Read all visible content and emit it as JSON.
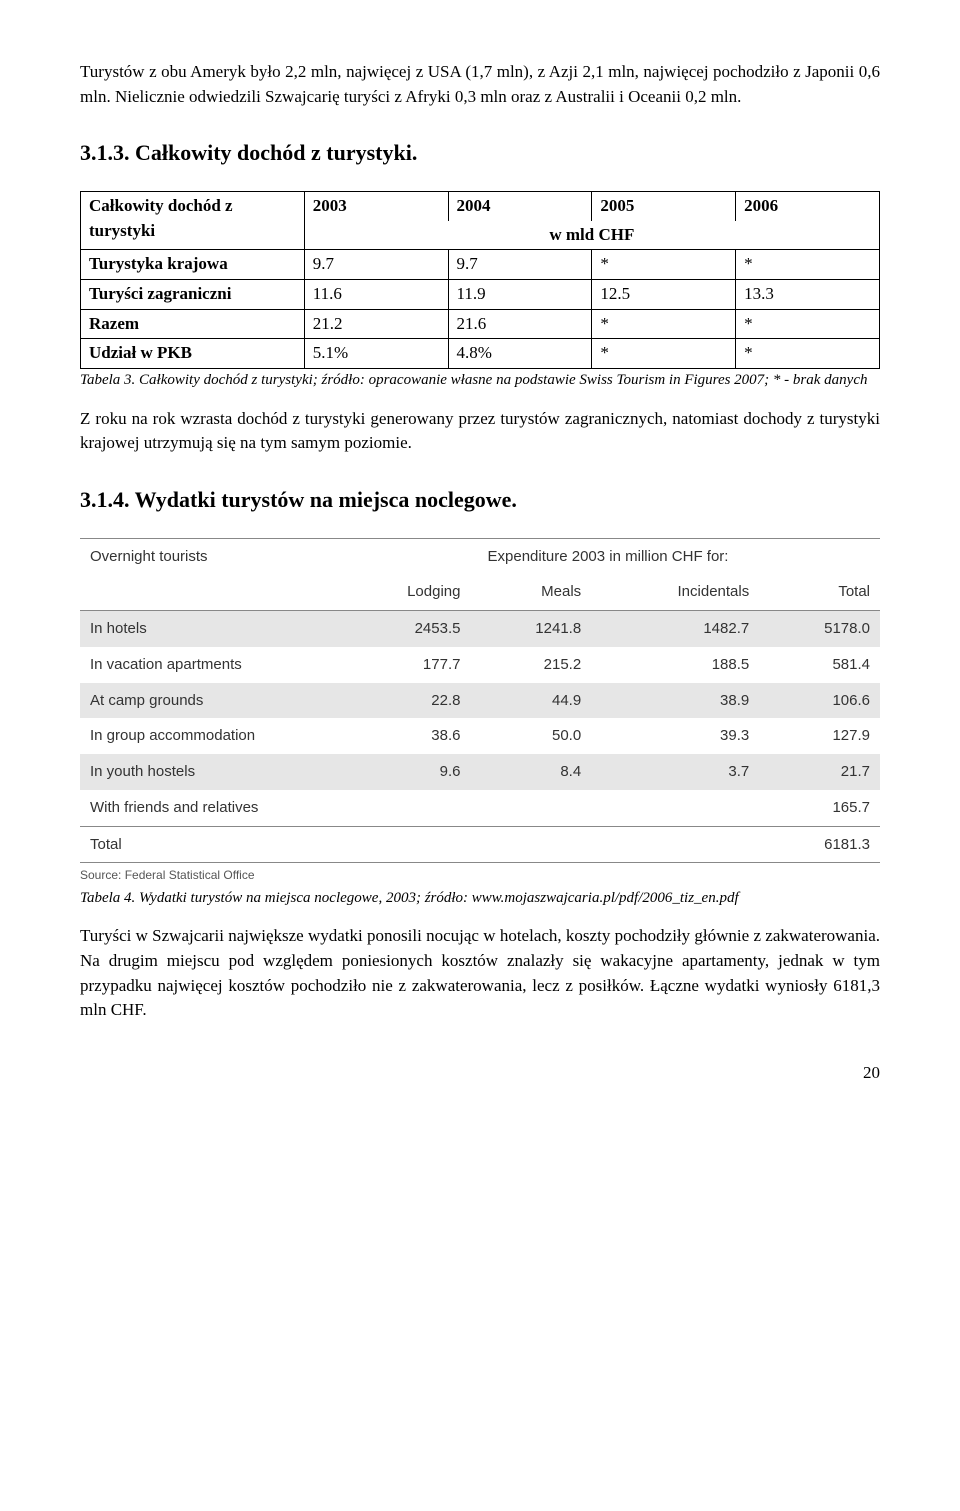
{
  "intro_para": "Turystów z obu Ameryk było 2,2 mln, najwięcej z USA (1,7 mln), z Azji 2,1 mln, najwięcej pochodziło z Japonii 0,6 mln. Nielicznie odwiedzili Szwajcarię turyści z Afryki 0,3 mln oraz z Australii i Oceanii 0,2 mln.",
  "sec313_title": "3.1.3. Całkowity dochód z turystyki.",
  "table1": {
    "header_main": "Całkowity dochód z turystyki",
    "years": [
      "2003",
      "2004",
      "2005",
      "2006"
    ],
    "subheader": "w mld CHF",
    "rows": [
      {
        "label": "Turystyka krajowa",
        "v": [
          "9.7",
          "9.7",
          "*",
          "*"
        ]
      },
      {
        "label": "Turyści zagraniczni",
        "v": [
          "11.6",
          "11.9",
          "12.5",
          "13.3"
        ]
      },
      {
        "label": "Razem",
        "v": [
          "21.2",
          "21.6",
          "*",
          "*"
        ]
      },
      {
        "label": "Udział w PKB",
        "v": [
          "5.1%",
          "4.8%",
          "*",
          "*"
        ]
      }
    ]
  },
  "table1_caption": "Tabela 3. Całkowity dochód z turystyki; źródło: opracowanie własne na podstawie Swiss Tourism in Figures 2007;  * - brak danych",
  "para_after_t1": "Z roku na rok wzrasta dochód z turystyki generowany przez turystów zagranicznych, natomiast dochody z turystyki krajowej utrzymują się na tym samym poziomie.",
  "sec314_title": "3.1.4. Wydatki turystów na miejsca noclegowe.",
  "exp": {
    "top_left": "Overnight tourists",
    "top_right": "Expenditure 2003 in million CHF for:",
    "cols": [
      "Lodging",
      "Meals",
      "Incidentals",
      "Total"
    ],
    "rows": [
      {
        "label": "In hotels",
        "v": [
          "2453.5",
          "1241.8",
          "1482.7",
          "5178.0"
        ],
        "stripe": true
      },
      {
        "label": "In vacation apartments",
        "v": [
          "177.7",
          "215.2",
          "188.5",
          "581.4"
        ],
        "stripe": false
      },
      {
        "label": "At camp grounds",
        "v": [
          "22.8",
          "44.9",
          "38.9",
          "106.6"
        ],
        "stripe": true
      },
      {
        "label": "In group accommodation",
        "v": [
          "38.6",
          "50.0",
          "39.3",
          "127.9"
        ],
        "stripe": false
      },
      {
        "label": "In youth hostels",
        "v": [
          "9.6",
          "8.4",
          "3.7",
          "21.7"
        ],
        "stripe": true
      },
      {
        "label": "With friends and relatives",
        "v": [
          "",
          "",
          "",
          "165.7"
        ],
        "stripe": false
      }
    ],
    "total_label": "Total",
    "total_value": "6181.3",
    "source": "Source: Federal Statistical Office"
  },
  "table2_caption": "Tabela 4. Wydatki turystów na miejsca noclegowe, 2003; źródło: www.mojaszwajcaria.pl/pdf/2006_tiz_en.pdf",
  "final_para": "Turyści w Szwajcarii największe wydatki ponosili nocując w hotelach, koszty pochodziły głównie z zakwaterowania. Na drugim miejscu pod względem poniesionych kosztów znalazły się wakacyjne apartamenty, jednak w tym przypadku najwięcej kosztów pochodziło nie z zakwaterowania, lecz z posiłków. Łączne wydatki wyniosły 6181,3 mln CHF.",
  "page_number": "20"
}
